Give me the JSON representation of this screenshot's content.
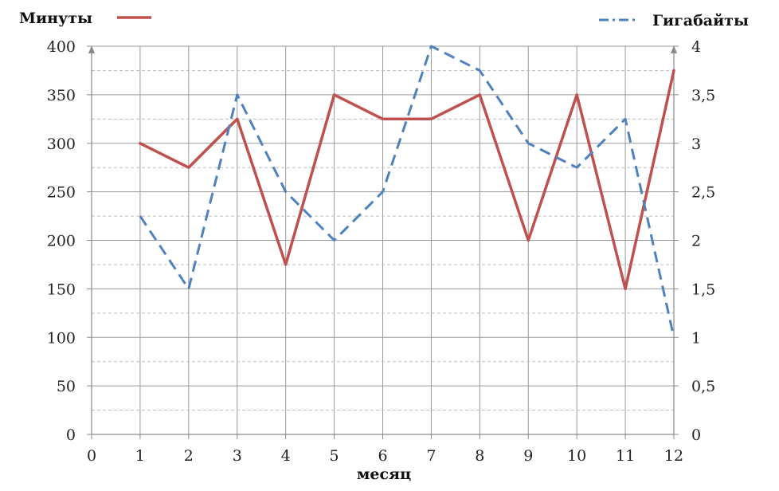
{
  "chart_data": {
    "type": "line",
    "xlabel": "месяц",
    "x_ticks": [
      "0",
      "1",
      "2",
      "3",
      "4",
      "5",
      "6",
      "7",
      "8",
      "9",
      "10",
      "11",
      "12"
    ],
    "xlim": [
      0,
      12
    ],
    "left_axis": {
      "ylim": [
        0,
        400
      ],
      "ticks": [
        "0",
        "50",
        "100",
        "150",
        "200",
        "250",
        "300",
        "350",
        "400"
      ]
    },
    "right_axis": {
      "ylim": [
        0,
        4
      ],
      "ticks": [
        "0",
        "0,5",
        "1",
        "1,5",
        "2",
        "2,5",
        "3",
        "3,5",
        "4"
      ]
    },
    "grid": true,
    "legend": [
      "top-left",
      "top-right"
    ],
    "series": [
      {
        "name": "Минуты",
        "axis": "left",
        "style": "solid",
        "color": "#c0504d",
        "x": [
          1,
          2,
          3,
          4,
          5,
          6,
          7,
          8,
          9,
          10,
          11,
          12
        ],
        "values": [
          300,
          275,
          325,
          175,
          350,
          325,
          325,
          350,
          200,
          350,
          150,
          375
        ]
      },
      {
        "name": "Гигабайты",
        "axis": "right",
        "style": "dashed",
        "color": "#4f81bd",
        "x": [
          1,
          2,
          3,
          4,
          5,
          6,
          7,
          8,
          9,
          10,
          11,
          12
        ],
        "values": [
          2.25,
          1.5,
          3.5,
          2.5,
          2,
          2.5,
          4,
          3.75,
          3,
          2.75,
          3.25,
          1
        ]
      }
    ]
  }
}
